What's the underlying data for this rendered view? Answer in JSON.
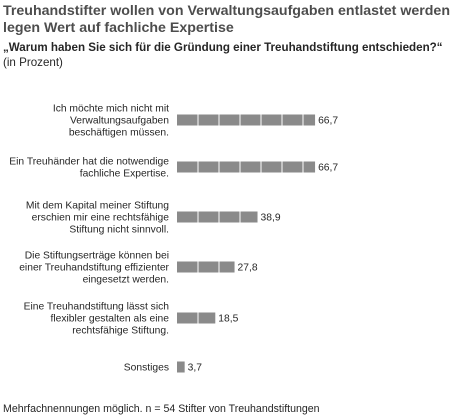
{
  "chart_data": {
    "type": "bar",
    "orientation": "horizontal",
    "title": "Treuhandstifter wollen von Verwaltungsaufgaben entlastet werden und legen Wert auf fachliche Expertise",
    "title_lines": [
      "Treuhandstifter wollen von Verwaltungsaufgaben entlastet werden und",
      "legen Wert auf fachliche Expertise"
    ],
    "subtitle": "„Warum haben Sie sich für die Gründung einer Treuhandstiftung entschieden?“",
    "unit_label": "(in Prozent)",
    "categories": [
      "Ich möchte mich nicht mit Verwaltungsaufgaben beschäftigen müssen.",
      "Ein Treuhänder hat die notwendige fachliche Expertise.",
      "Mit dem Kapital meiner Stiftung erschien mir eine rechtsfähige Stiftung nicht sinnvoll.",
      "Die Stiftungserträge können bei einer Treuhandstiftung effizienter eingesetzt werden.",
      "Eine Treuhandstiftung lässt sich flexibler gestalten als eine rechtsfähige Stiftung.",
      "Sonstiges"
    ],
    "category_lines": [
      [
        "Ich möchte mich nicht mit",
        "Verwaltungsaufgaben",
        "beschäftigen müssen."
      ],
      [
        "Ein Treuhänder hat die notwendige",
        "fachliche Expertise."
      ],
      [
        "Mit dem Kapital meiner Stiftung",
        "erschien mir eine rechtsfähige",
        "Stiftung nicht sinnvoll."
      ],
      [
        "Die Stiftungserträge können bei",
        "einer Treuhandstiftung effizienter",
        "eingesetzt werden."
      ],
      [
        "Eine Treuhandstiftung lässt sich",
        "flexibler gestalten als eine",
        "rechtsfähige Stiftung."
      ],
      [
        "Sonstiges"
      ]
    ],
    "values": [
      66.7,
      66.7,
      38.9,
      27.8,
      18.5,
      3.7
    ],
    "value_labels": [
      "66,7",
      "66,7",
      "38,9",
      "27,8",
      "18,5",
      "3,7"
    ],
    "xlim": [
      0,
      100
    ],
    "grid": false,
    "bar_color": "#8a8a8a",
    "footnote": "Mehrfachnennungen möglich. n = 54 Stifter von Treuhandstiftungen"
  }
}
